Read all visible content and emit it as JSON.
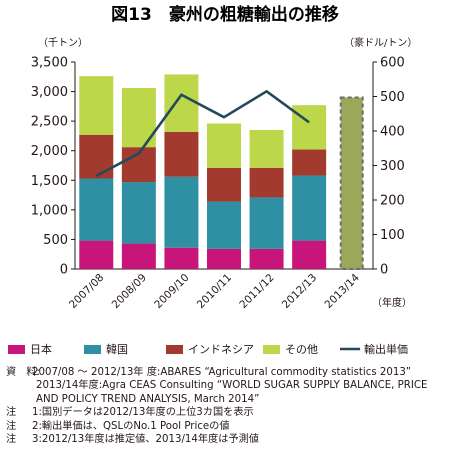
{
  "title": "図13　豪州の粗糖輸出の推移",
  "unit_left": "（千トン）",
  "unit_right": "（豪ドル/トン）",
  "x_unit": "（年度）",
  "colors": {
    "japan": "#c8157a",
    "korea": "#2f8fa3",
    "indonesia": "#a33a2e",
    "other": "#bdd74b",
    "price_line": "#24495a",
    "forecast_fill": "#9aa85a"
  },
  "chart_data": {
    "type": "bar",
    "stacked": true,
    "categories": [
      "2007/08",
      "2008/09",
      "2009/10",
      "2010/11",
      "2011/12",
      "2012/13",
      "2013/14"
    ],
    "left_axis": {
      "ylim": [
        0,
        3500
      ],
      "ticks": [
        "0",
        "500",
        "1,000",
        "1,500",
        "2,000",
        "2,500",
        "3,000",
        "3,500"
      ]
    },
    "right_axis": {
      "ylim": [
        0,
        600
      ],
      "ticks": [
        "0",
        "100",
        "200",
        "300",
        "400",
        "500",
        "600"
      ]
    },
    "series": [
      {
        "name": "日本",
        "key": "japan",
        "values": [
          480,
          430,
          360,
          340,
          340,
          480,
          null
        ]
      },
      {
        "name": "韓国",
        "key": "korea",
        "values": [
          1050,
          1040,
          1200,
          800,
          870,
          1100,
          null
        ]
      },
      {
        "name": "インドネシア",
        "key": "indonesia",
        "values": [
          740,
          590,
          760,
          570,
          500,
          440,
          null
        ]
      },
      {
        "name": "その他",
        "key": "other",
        "values": [
          990,
          1000,
          970,
          750,
          640,
          750,
          null
        ]
      }
    ],
    "total_forecast": {
      "category": "2013/14",
      "value": 2900
    },
    "line": {
      "name": "輸出単価",
      "axis": "right",
      "values": [
        270,
        335,
        505,
        440,
        515,
        425,
        null
      ]
    },
    "grid": false,
    "legend_position": "bottom"
  },
  "notes": [
    {
      "label": "資　料:",
      "text": "2007/08 ～ 2012/13年 度:ABARES “Agricultural commodity statistics 2013”"
    },
    {
      "label": "",
      "text": "2013/14年度:Agra CEAS Consulting “WORLD SUGAR SUPPLY BALANCE, PRICE AND POLICY TREND ANALYSIS, March 2014”"
    },
    {
      "label": "注",
      "text": "1:国別データは2012/13年度の上位3カ国を表示"
    },
    {
      "label": "注",
      "text": "2:輸出単価は、QSLのNo.1 Pool Priceの値"
    },
    {
      "label": "注",
      "text": "3:2012/13年度は推定値、2013/14年度は予測値"
    }
  ]
}
